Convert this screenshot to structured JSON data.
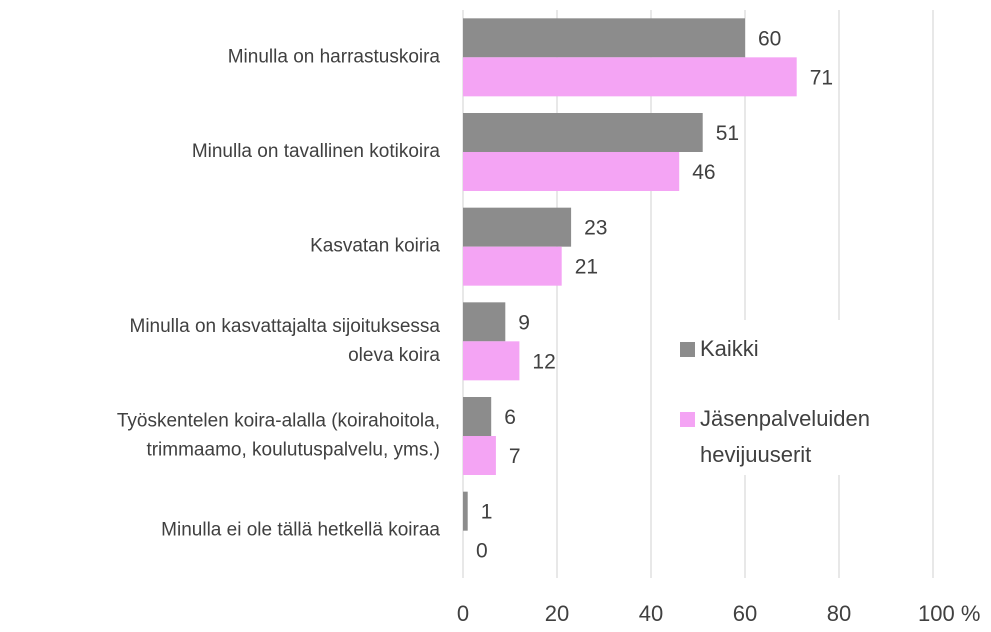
{
  "chart_data": {
    "type": "bar",
    "orientation": "horizontal",
    "categories": [
      "Minulla on harrastuskoira",
      "Minulla on tavallinen kotikoira",
      "Kasvatan koiria",
      "Minulla on kasvattajalta sijoituksessa\noleva koira",
      "Työskentelen koira-alalla (koirahoitola,\ntrimmaamo, koulutuspalvelu, yms.)",
      "Minulla ei ole tällä hetkellä koiraa"
    ],
    "series": [
      {
        "name": "Kaikki",
        "color": "#8c8c8c",
        "values": [
          60,
          51,
          23,
          9,
          6,
          1
        ]
      },
      {
        "name": "Jäsenpalveluiden\nhevijuuserit",
        "color": "#f4a4f4",
        "values": [
          71,
          46,
          21,
          12,
          7,
          0
        ]
      }
    ],
    "xlim": [
      0,
      100
    ],
    "xticks": [
      0,
      20,
      40,
      60,
      80,
      {
        "value": 100,
        "label": "100 %"
      }
    ],
    "grid": true,
    "legend": "right"
  }
}
